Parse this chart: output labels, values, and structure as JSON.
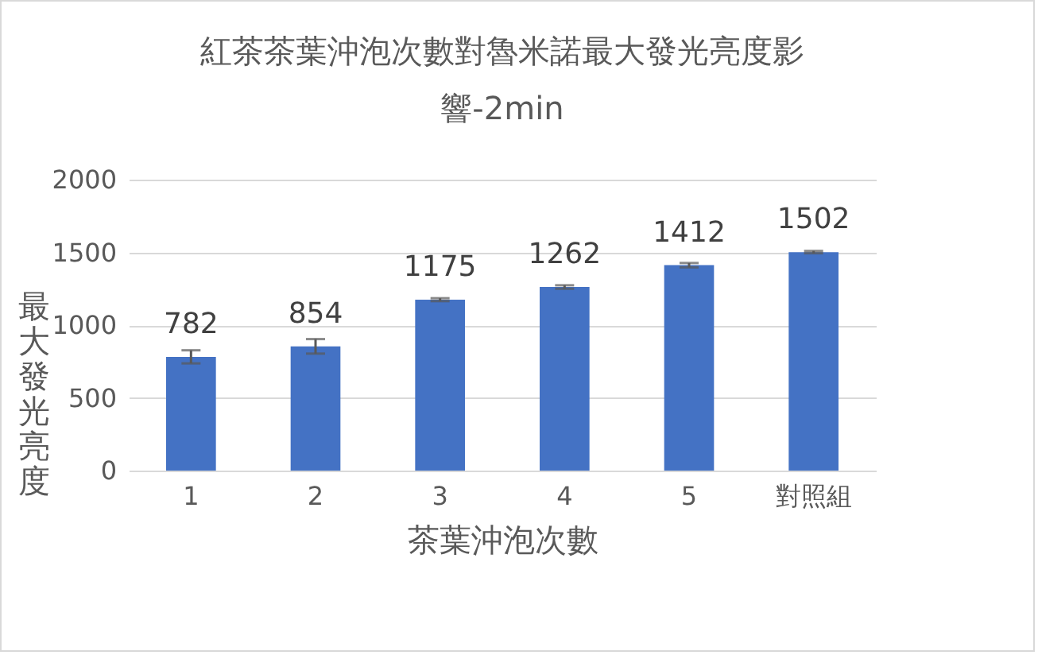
{
  "chart_data": {
    "type": "bar",
    "title": "紅茶茶葉沖泡次數對魯米諾最大發光亮度影響-2min",
    "xlabel": "茶葉沖泡次數",
    "ylabel": "最大發光亮度",
    "categories": [
      "1",
      "2",
      "3",
      "4",
      "5",
      "對照組"
    ],
    "values": [
      782,
      854,
      1175,
      1262,
      1412,
      1502
    ],
    "errors": [
      45,
      50,
      10,
      12,
      15,
      8
    ],
    "color": "#4472c4",
    "ylim": [
      0,
      2000
    ],
    "yticks": [
      0,
      500,
      1000,
      1500,
      2000
    ],
    "grid": "y",
    "data_labels": true
  }
}
